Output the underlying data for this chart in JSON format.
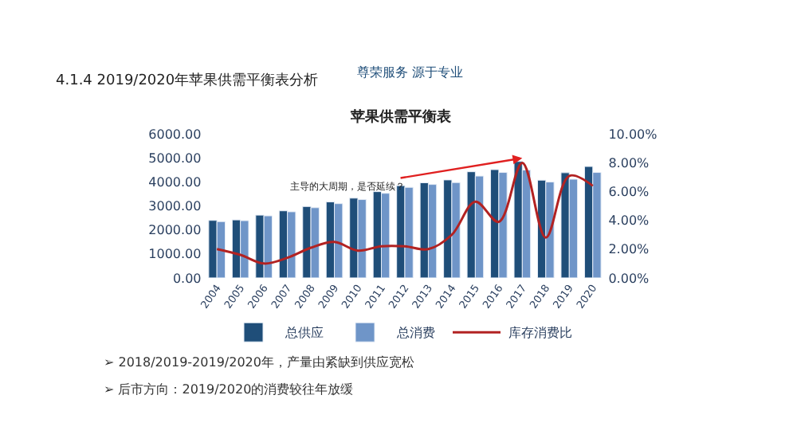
{
  "chart_data": {
    "type": "bar",
    "title": "苹果供需平衡表",
    "categories": [
      "2004",
      "2005",
      "2006",
      "2007",
      "2008",
      "2009",
      "2010",
      "2011",
      "2012",
      "2013",
      "2014",
      "2015",
      "2016",
      "2017",
      "2018",
      "2019",
      "2020"
    ],
    "series": [
      {
        "name": "总供应",
        "color": "#1f4e79",
        "values": [
          2400,
          2420,
          2620,
          2800,
          2980,
          3170,
          3330,
          3600,
          3850,
          3970,
          4090,
          4430,
          4520,
          4860,
          4080,
          4390,
          4650
        ]
      },
      {
        "name": "总消费",
        "color": "#6f95c8",
        "values": [
          2350,
          2390,
          2590,
          2760,
          2930,
          3100,
          3270,
          3530,
          3780,
          3900,
          3980,
          4250,
          4400,
          4500,
          4000,
          4120,
          4400
        ]
      },
      {
        "name": "库存消费比",
        "color": "#b22222",
        "type": "line",
        "axis": "y2",
        "values": [
          2.0,
          1.6,
          1.0,
          1.4,
          2.1,
          2.5,
          1.9,
          2.2,
          2.2,
          2.0,
          3.0,
          5.3,
          3.9,
          8.0,
          2.8,
          7.1,
          6.4
        ]
      }
    ],
    "ylim": [
      0,
      6000
    ],
    "yticks": [
      {
        "value": 0,
        "label": "0.00"
      },
      {
        "value": 1000,
        "label": "1000.00"
      },
      {
        "value": 2000,
        "label": "2000.00"
      },
      {
        "value": 3000,
        "label": "3000.00"
      },
      {
        "value": 4000,
        "label": "4000.00"
      },
      {
        "value": 5000,
        "label": "5000.00"
      },
      {
        "value": 6000,
        "label": "6000.00"
      }
    ],
    "y2lim": [
      0,
      10
    ],
    "y2ticks": [
      {
        "value": 0,
        "label": "0.00%"
      },
      {
        "value": 2,
        "label": "2.00%"
      },
      {
        "value": 4,
        "label": "4.00%"
      },
      {
        "value": 6,
        "label": "6.00%"
      },
      {
        "value": 8,
        "label": "8.00%"
      },
      {
        "value": 10,
        "label": "10.00%"
      }
    ],
    "annotations": [
      "尊荣服务 源于专业",
      "4.1.4 2019/2020年苹果供需平衡表分析",
      {
        "text": "主导的大周期，是否延续？",
        "x": "2017",
        "y": 5000
      },
      "➢ 2018/2019-2019/2020年，产量由紧缺到供应宽松",
      "➢ 后市方向：2019/2020的消费较往年放缓"
    ],
    "legend": "bottom",
    "marker": "none"
  }
}
